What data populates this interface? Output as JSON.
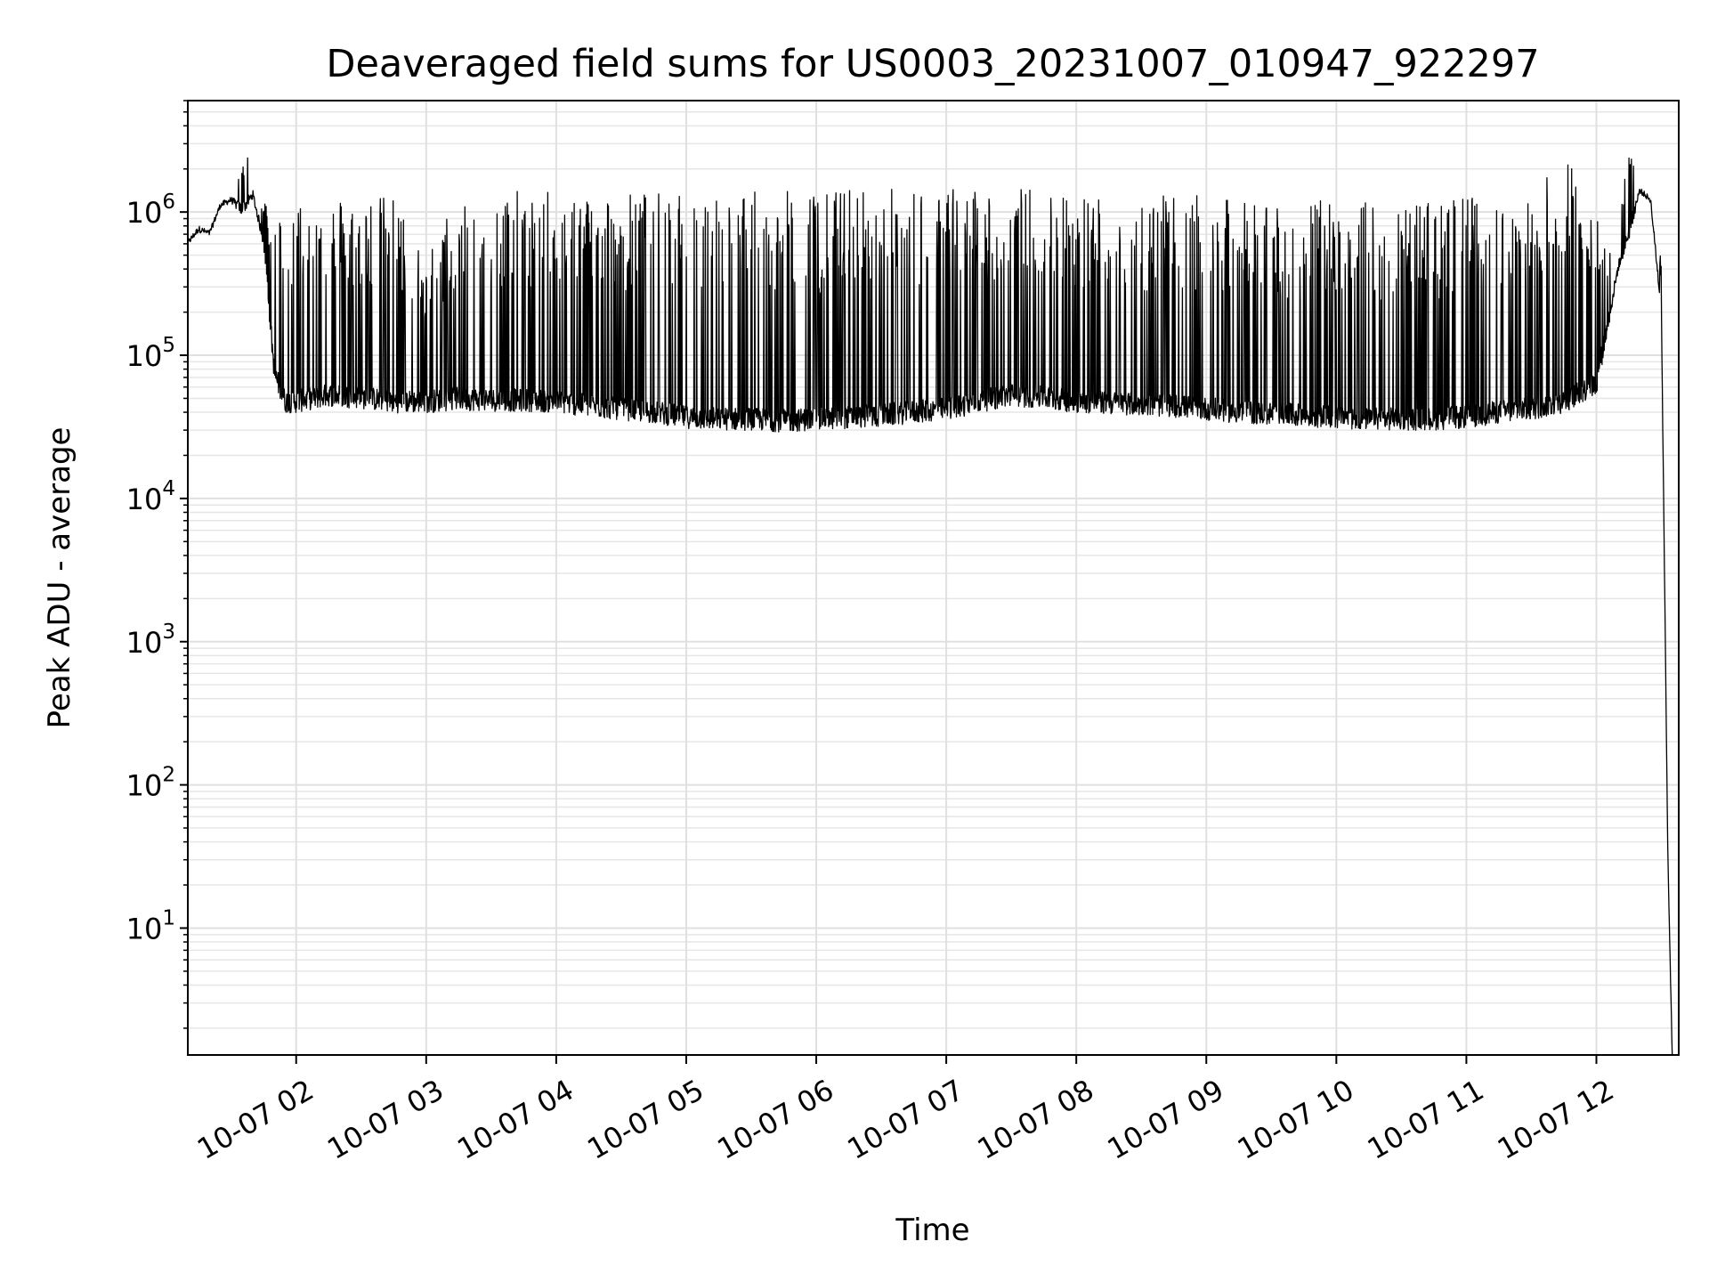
{
  "chart_data": {
    "type": "line",
    "title": "Deaveraged field sums for US0003_20231007_010947_922297",
    "xlabel": "Time",
    "ylabel": "Peak ADU - average",
    "yscale": "log",
    "xlim": [
      "2023-10-07 01:10",
      "2023-10-07 12:38"
    ],
    "ylim": [
      1.3,
      6000000
    ],
    "grid": true,
    "x_ticks": [
      {
        "value": "2023-10-07 02:00",
        "label": "10-07 02"
      },
      {
        "value": "2023-10-07 03:00",
        "label": "10-07 03"
      },
      {
        "value": "2023-10-07 04:00",
        "label": "10-07 04"
      },
      {
        "value": "2023-10-07 05:00",
        "label": "10-07 05"
      },
      {
        "value": "2023-10-07 06:00",
        "label": "10-07 06"
      },
      {
        "value": "2023-10-07 07:00",
        "label": "10-07 07"
      },
      {
        "value": "2023-10-07 08:00",
        "label": "10-07 08"
      },
      {
        "value": "2023-10-07 09:00",
        "label": "10-07 09"
      },
      {
        "value": "2023-10-07 10:00",
        "label": "10-07 10"
      },
      {
        "value": "2023-10-07 11:00",
        "label": "10-07 11"
      },
      {
        "value": "2023-10-07 12:00",
        "label": "10-07 12"
      }
    ],
    "y_ticks": [
      {
        "value": 10,
        "base": "10",
        "exp": "1"
      },
      {
        "value": 100,
        "base": "10",
        "exp": "2"
      },
      {
        "value": 1000,
        "base": "10",
        "exp": "3"
      },
      {
        "value": 10000,
        "base": "10",
        "exp": "4"
      },
      {
        "value": 100000,
        "base": "10",
        "exp": "5"
      },
      {
        "value": 1000000,
        "base": "10",
        "exp": "6"
      }
    ],
    "series": [
      {
        "color": "#000000",
        "x": [
          "2023-10-07 01:10",
          "2023-10-07 01:15",
          "2023-10-07 01:20",
          "2023-10-07 01:25",
          "2023-10-07 01:30",
          "2023-10-07 01:35",
          "2023-10-07 01:40",
          "2023-10-07 01:45",
          "2023-10-07 01:50",
          "2023-10-07 01:55",
          "2023-10-07 02:00",
          "2023-10-07 02:15",
          "2023-10-07 02:30",
          "2023-10-07 02:45",
          "2023-10-07 03:00",
          "2023-10-07 03:15",
          "2023-10-07 03:30",
          "2023-10-07 03:45",
          "2023-10-07 04:00",
          "2023-10-07 04:15",
          "2023-10-07 04:30",
          "2023-10-07 04:45",
          "2023-10-07 05:00",
          "2023-10-07 05:15",
          "2023-10-07 05:30",
          "2023-10-07 05:45",
          "2023-10-07 06:00",
          "2023-10-07 06:15",
          "2023-10-07 06:30",
          "2023-10-07 06:45",
          "2023-10-07 07:00",
          "2023-10-07 07:15",
          "2023-10-07 07:30",
          "2023-10-07 07:45",
          "2023-10-07 08:00",
          "2023-10-07 08:15",
          "2023-10-07 08:30",
          "2023-10-07 08:45",
          "2023-10-07 09:00",
          "2023-10-07 09:15",
          "2023-10-07 09:30",
          "2023-10-07 09:45",
          "2023-10-07 10:00",
          "2023-10-07 10:15",
          "2023-10-07 10:30",
          "2023-10-07 10:45",
          "2023-10-07 11:00",
          "2023-10-07 11:15",
          "2023-10-07 11:30",
          "2023-10-07 11:45",
          "2023-10-07 12:00",
          "2023-10-07 12:05",
          "2023-10-07 12:10",
          "2023-10-07 12:15",
          "2023-10-07 12:20",
          "2023-10-07 12:25",
          "2023-10-07 12:30",
          "2023-10-07 12:33",
          "2023-10-07 12:35"
        ],
        "y_base": [
          600000,
          750000,
          700000,
          1100000,
          1200000,
          1000000,
          1300000,
          600000,
          70000,
          45000,
          45000,
          50000,
          48000,
          45000,
          45000,
          47000,
          46000,
          46000,
          45000,
          42000,
          40000,
          38000,
          35000,
          34000,
          34000,
          33000,
          34000,
          35000,
          36000,
          38000,
          40000,
          45000,
          50000,
          48000,
          45000,
          44000,
          43000,
          42000,
          40000,
          38000,
          37000,
          36000,
          35000,
          34000,
          34000,
          34000,
          35000,
          38000,
          40000,
          45000,
          60000,
          150000,
          400000,
          700000,
          1400000,
          1200000,
          200000,
          30,
          1.3
        ],
        "y_spike": [
          700000,
          900000,
          800000,
          1300000,
          1400000,
          2900000,
          2000000,
          1300000,
          1300000,
          800000,
          1300000,
          1300000,
          1300000,
          1300000,
          500000,
          1400000,
          1400000,
          1400000,
          1400000,
          1400000,
          1400000,
          1400000,
          1300000,
          1400000,
          1400000,
          1400000,
          1400000,
          1500000,
          1500000,
          1500000,
          1500000,
          1500000,
          1500000,
          1500000,
          1400000,
          1400000,
          1300000,
          1300000,
          1300000,
          1200000,
          1200000,
          1200000,
          1200000,
          1200000,
          1200000,
          1200000,
          1300000,
          1200000,
          1200000,
          2700000,
          1200000,
          600000,
          700000,
          3000000,
          1600000,
          1400000,
          500000,
          30,
          1.3
        ]
      }
    ]
  }
}
